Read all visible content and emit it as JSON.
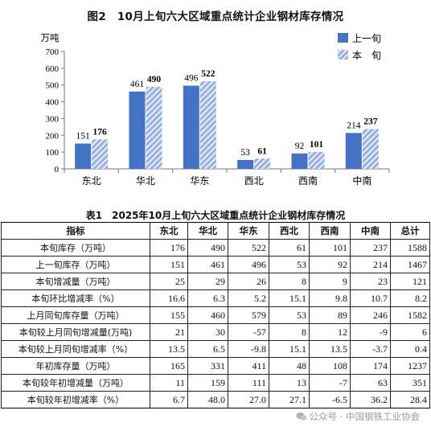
{
  "chart_data": {
    "type": "bar",
    "title": "图2　10月上旬六大区域重点统计企业钢材库存情况",
    "ylabel": "万吨",
    "ylim": [
      0,
      700
    ],
    "yticks": [
      0,
      100,
      200,
      300,
      400,
      500,
      600,
      700
    ],
    "categories": [
      "东北",
      "华北",
      "华东",
      "西北",
      "西南",
      "中南"
    ],
    "series": [
      {
        "name": "上一旬",
        "values": [
          151,
          461,
          496,
          53,
          92,
          214
        ],
        "color": "#4472c4",
        "pattern": "solid"
      },
      {
        "name": "本　旬",
        "values": [
          176,
          490,
          522,
          61,
          101,
          237
        ],
        "color": "#8fa9dc",
        "pattern": "diagonal-hatch"
      }
    ],
    "legend": "top-right",
    "grid": false
  },
  "table": {
    "title": "表1　2025年10月上旬六大区域重点统计企业钢材库存情况",
    "headers": [
      "指标",
      "东北",
      "华北",
      "华东",
      "西北",
      "西南",
      "中南",
      "总计"
    ],
    "rows": [
      {
        "label": "本旬库存（万吨）",
        "values": [
          "176",
          "490",
          "522",
          "61",
          "101",
          "237",
          "1588"
        ]
      },
      {
        "label": "上一旬库存（万吨）",
        "values": [
          "151",
          "461",
          "496",
          "53",
          "92",
          "214",
          "1467"
        ]
      },
      {
        "label": "本旬增减量（万吨）",
        "values": [
          "25",
          "29",
          "26",
          "8",
          "9",
          "23",
          "121"
        ]
      },
      {
        "label": "本旬环比增减率（%）",
        "values": [
          "16.6",
          "6.3",
          "5.2",
          "15.1",
          "9.8",
          "10.7",
          "8.2"
        ]
      },
      {
        "label": "上月同旬库存量（万吨）",
        "values": [
          "155",
          "460",
          "579",
          "53",
          "89",
          "246",
          "1582"
        ]
      },
      {
        "label": "本旬较上月同旬增减量(万吨)",
        "values": [
          "21",
          "30",
          "-57",
          "8",
          "12",
          "-9",
          "6"
        ]
      },
      {
        "label": "本旬较上月同旬增减率（%）",
        "values": [
          "13.5",
          "6.5",
          "-9.8",
          "15.1",
          "13.5",
          "-3.7",
          "0.4"
        ]
      },
      {
        "label": "年初库存量（万吨）",
        "values": [
          "165",
          "331",
          "411",
          "48",
          "108",
          "174",
          "1237"
        ]
      },
      {
        "label": "本旬较年初增减量（万吨）",
        "values": [
          "11",
          "159",
          "111",
          "13",
          "-7",
          "63",
          "351"
        ]
      },
      {
        "label": "本旬较年初增减率（%）",
        "values": [
          "6.7",
          "48.0",
          "27.0",
          "27.1",
          "-6.5",
          "36.2",
          "28.4"
        ]
      }
    ]
  },
  "watermark": "公众号 · 中国钢铁工业协会"
}
